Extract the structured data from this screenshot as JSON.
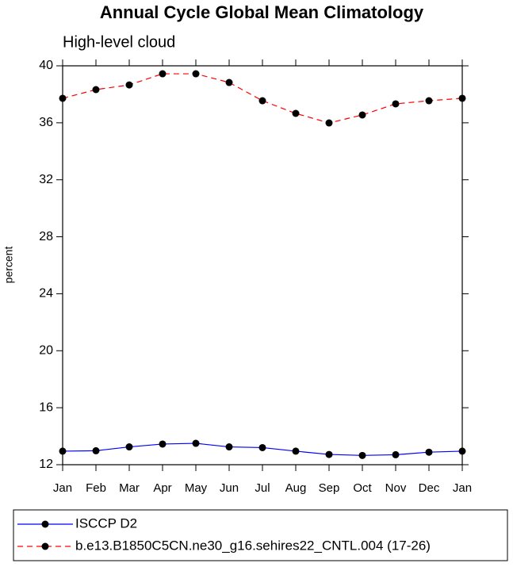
{
  "chart_data": {
    "type": "line",
    "title": "Annual Cycle Global Mean Climatology",
    "subtitle": "High-level cloud",
    "y_label": "percent",
    "categories": [
      "Jan",
      "Feb",
      "Mar",
      "Apr",
      "May",
      "Jun",
      "Jul",
      "Aug",
      "Sep",
      "Oct",
      "Nov",
      "Dec",
      "Jan"
    ],
    "series": [
      {
        "name": "ISCCP D2",
        "color": "#0000ff",
        "line_style": "solid",
        "values": [
          12.95,
          12.98,
          13.25,
          13.45,
          13.5,
          13.25,
          13.2,
          12.95,
          12.72,
          12.65,
          12.7,
          12.88,
          12.95
        ]
      },
      {
        "name": "b.e13.B1850C5CN.ne30_g16.sehires22_CNTL.004 (17-26)",
        "color": "#ff0000",
        "line_style": "dashed",
        "values": [
          37.72,
          38.33,
          38.66,
          39.44,
          39.44,
          38.83,
          37.55,
          36.66,
          35.99,
          36.55,
          37.33,
          37.55,
          37.72
        ]
      }
    ],
    "ylim": [
      12,
      40
    ],
    "yticks": [
      12,
      16,
      20,
      24,
      28,
      32,
      36,
      40
    ]
  }
}
